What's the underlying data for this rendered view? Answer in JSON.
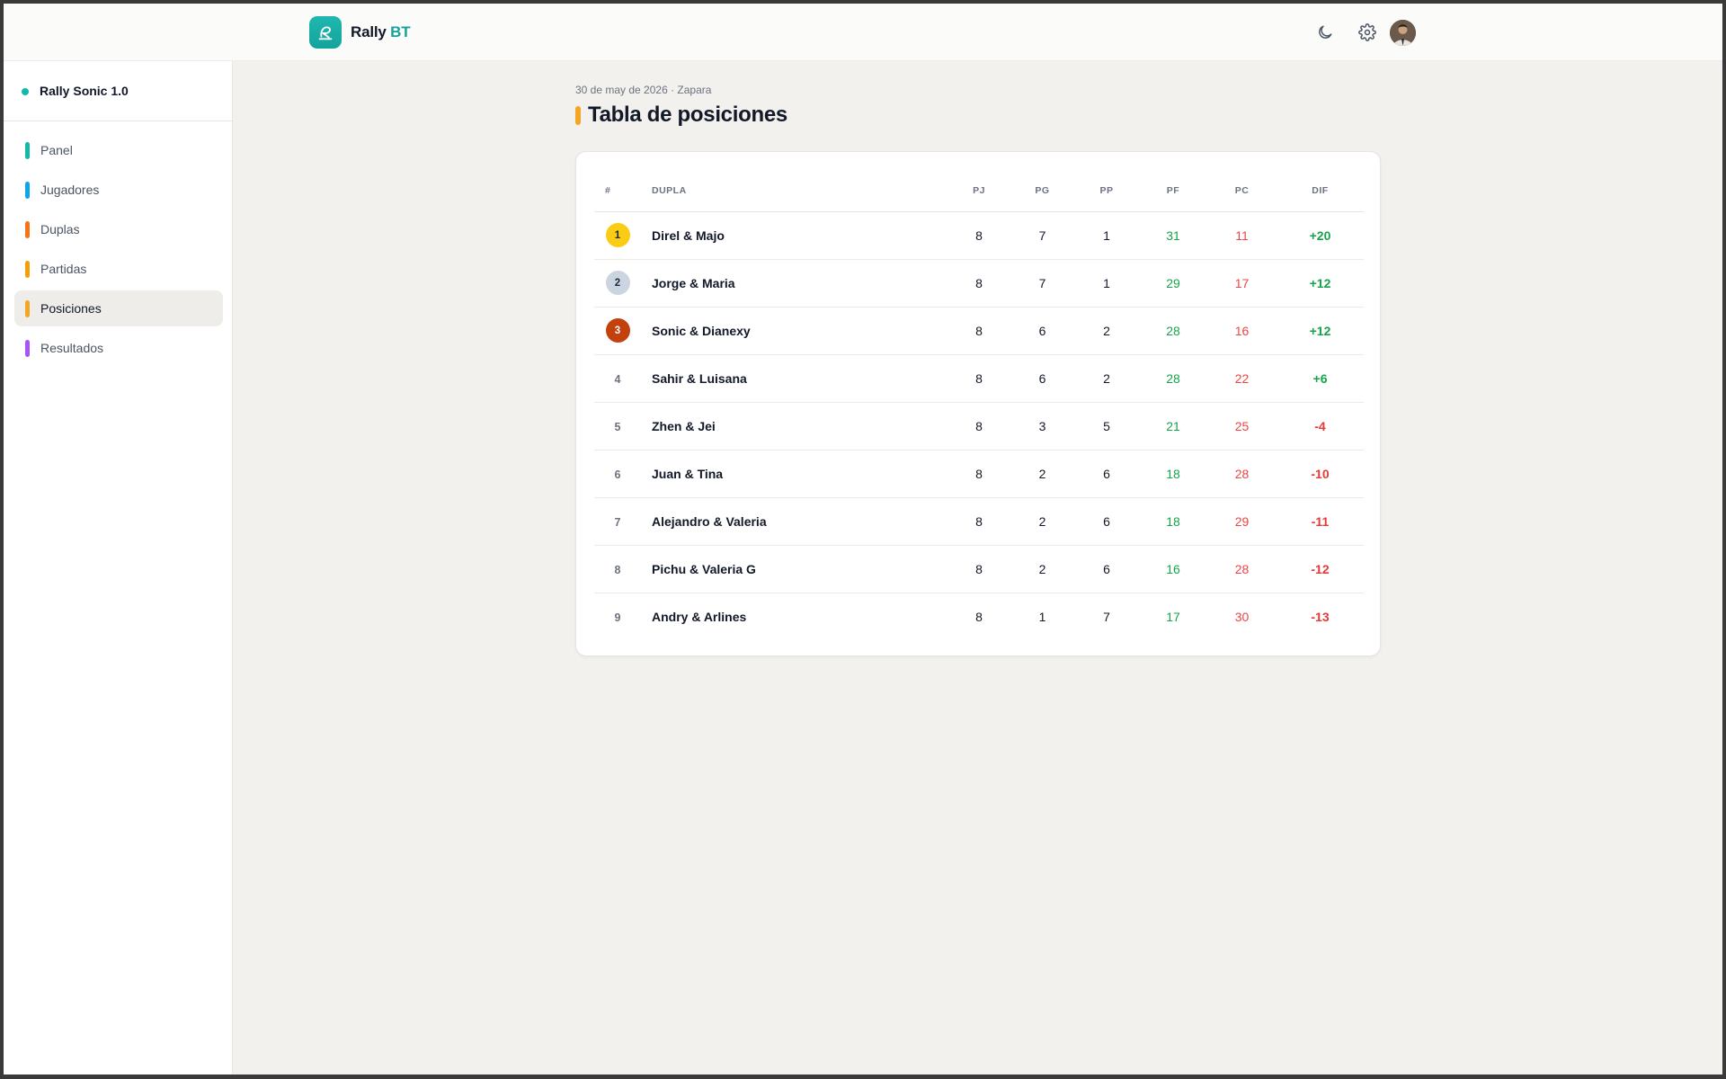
{
  "header": {
    "brand_main": "Rally",
    "brand_accent": "BT",
    "icons": [
      "moon-icon",
      "gear-icon"
    ]
  },
  "sidebar": {
    "project": "Rally Sonic 1.0",
    "items": [
      {
        "label": "Panel",
        "color": "#14b8a6"
      },
      {
        "label": "Jugadores",
        "color": "#0ea5e9"
      },
      {
        "label": "Duplas",
        "color": "#f97316"
      },
      {
        "label": "Partidas",
        "color": "#f59e0b"
      },
      {
        "label": "Posiciones",
        "color": "#f5a524",
        "active": true
      },
      {
        "label": "Resultados",
        "color": "#a855f7"
      }
    ]
  },
  "page": {
    "subtitle": "30 de may de 2026 · Zapara",
    "title": "Tabla de posiciones"
  },
  "table": {
    "headers": [
      "#",
      "DUPLA",
      "PJ",
      "PG",
      "PP",
      "PF",
      "PC",
      "DIF"
    ],
    "rows": [
      {
        "rank": "1",
        "pair": "Direl & Majo",
        "pj": "8",
        "pg": "7",
        "pp": "1",
        "pf": "31",
        "pc": "11",
        "dif": "+20"
      },
      {
        "rank": "2",
        "pair": "Jorge & Maria",
        "pj": "8",
        "pg": "7",
        "pp": "1",
        "pf": "29",
        "pc": "17",
        "dif": "+12"
      },
      {
        "rank": "3",
        "pair": "Sonic & Dianexy",
        "pj": "8",
        "pg": "6",
        "pp": "2",
        "pf": "28",
        "pc": "16",
        "dif": "+12"
      },
      {
        "rank": "4",
        "pair": "Sahir & Luisana",
        "pj": "8",
        "pg": "6",
        "pp": "2",
        "pf": "28",
        "pc": "22",
        "dif": "+6"
      },
      {
        "rank": "5",
        "pair": "Zhen & Jei",
        "pj": "8",
        "pg": "3",
        "pp": "5",
        "pf": "21",
        "pc": "25",
        "dif": "-4"
      },
      {
        "rank": "6",
        "pair": "Juan & Tina",
        "pj": "8",
        "pg": "2",
        "pp": "6",
        "pf": "18",
        "pc": "28",
        "dif": "-10"
      },
      {
        "rank": "7",
        "pair": "Alejandro & Valeria",
        "pj": "8",
        "pg": "2",
        "pp": "6",
        "pf": "18",
        "pc": "29",
        "dif": "-11"
      },
      {
        "rank": "8",
        "pair": "Pichu & Valeria G",
        "pj": "8",
        "pg": "2",
        "pp": "6",
        "pf": "16",
        "pc": "28",
        "dif": "-12"
      },
      {
        "rank": "9",
        "pair": "Andry & Arlines",
        "pj": "8",
        "pg": "1",
        "pp": "7",
        "pf": "17",
        "pc": "30",
        "dif": "-13"
      }
    ],
    "medal_colors": {
      "1": "#facc15",
      "2": "#cbd5e1",
      "3": "#c2410c"
    }
  }
}
